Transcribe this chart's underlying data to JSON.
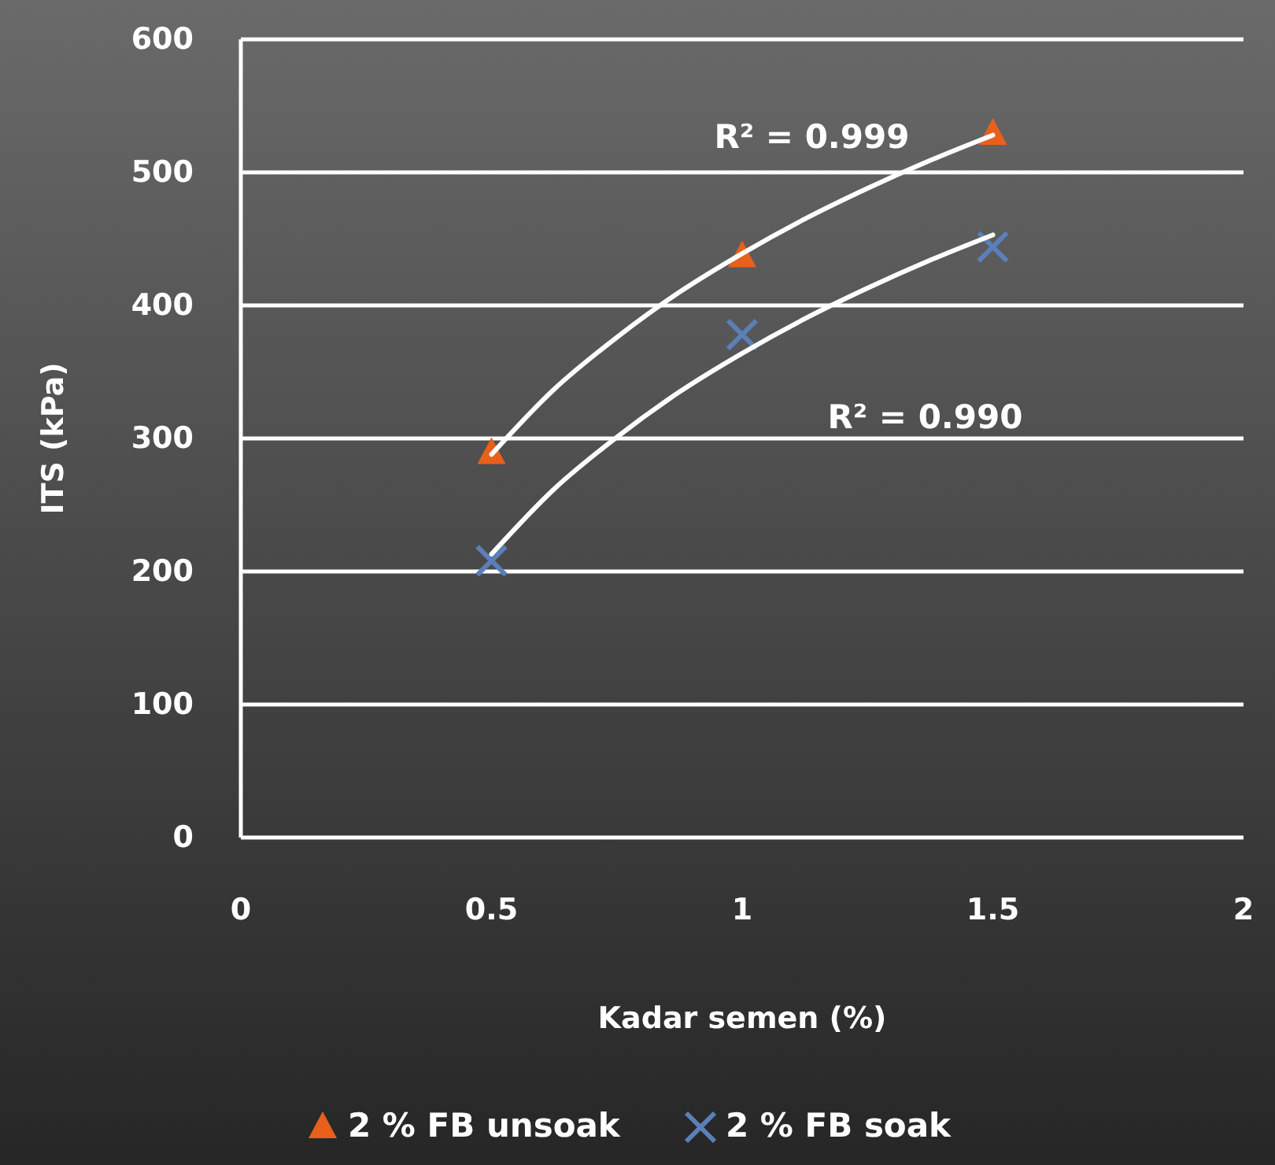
{
  "chart_data": {
    "type": "scatter",
    "xlabel": "Kadar semen (%)",
    "ylabel": "ITS (kPa)",
    "xlim": [
      0,
      2
    ],
    "xticks": [
      0,
      0.5,
      1,
      1.5,
      2
    ],
    "ylim": [
      0,
      600
    ],
    "yticks": [
      0,
      100,
      200,
      300,
      400,
      500,
      600
    ],
    "grid": "y",
    "legend": "bottom",
    "series": [
      {
        "name": "2 % FB unsoak",
        "color": "#e8601c",
        "marker": "triangle",
        "x": [
          0.5,
          1,
          1.5
        ],
        "values": [
          289,
          437,
          529
        ]
      },
      {
        "name": "2 % FB soak",
        "color": "#5b7fb8",
        "marker": "cross",
        "x": [
          0.5,
          1,
          1.5
        ],
        "values": [
          208,
          378,
          444
        ]
      },
      {
        "type": "line",
        "color": "#ffffff",
        "marker": "none",
        "x": [
          0.5,
          0.625,
          0.75,
          0.875,
          1,
          1.125,
          1.25,
          1.375,
          1.5
        ],
        "values": [
          288,
          337,
          376,
          410,
          439,
          465,
          488,
          509,
          528
        ]
      },
      {
        "type": "line",
        "color": "#ffffff",
        "marker": "none",
        "x": [
          0.5,
          0.625,
          0.75,
          0.875,
          1,
          1.125,
          1.25,
          1.375,
          1.5
        ],
        "values": [
          213,
          262,
          301,
          335,
          364,
          390,
          413,
          434,
          453
        ]
      }
    ],
    "annotations": [
      "R² = 0.999",
      "R² = 0.990"
    ]
  }
}
